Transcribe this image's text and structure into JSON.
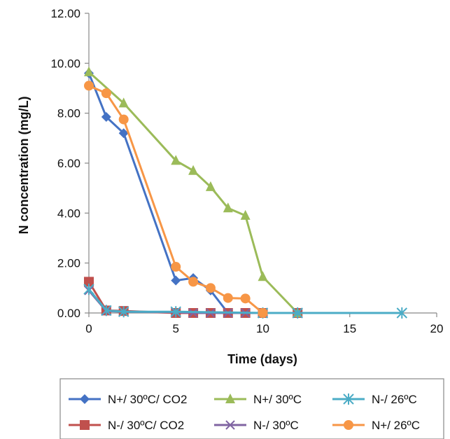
{
  "chart_data": {
    "type": "line",
    "xlabel": "Time (days)",
    "ylabel": "N concentration (mg/L)",
    "xlim": [
      0,
      20
    ],
    "ylim": [
      0,
      12
    ],
    "x_ticks": [
      0,
      5,
      10,
      15,
      20
    ],
    "y_ticks": [
      "0.00",
      "2.00",
      "4.00",
      "6.00",
      "8.00",
      "10.00",
      "12.00"
    ],
    "grid": false,
    "legend_position": "bottom",
    "series": [
      {
        "name": "N+/ 30ºC/ CO2",
        "color": "#4472C4",
        "marker": "diamond",
        "x": [
          0,
          1,
          2,
          5,
          6,
          7,
          8,
          9,
          10,
          12
        ],
        "y": [
          9.6,
          7.85,
          7.2,
          1.3,
          1.4,
          0.9,
          0.0,
          0.0,
          0.0,
          0.0
        ]
      },
      {
        "name": "N-/ 30ºC/ CO2",
        "color": "#C0504D",
        "marker": "square",
        "x": [
          0,
          1,
          2,
          5,
          6,
          7,
          8,
          9,
          10,
          12
        ],
        "y": [
          1.25,
          0.1,
          0.08,
          0.0,
          0.0,
          0.0,
          0.0,
          0.0,
          0.0,
          0.0
        ]
      },
      {
        "name": "N+/ 30ºC",
        "color": "#9BBB59",
        "marker": "triangle",
        "x": [
          0,
          2,
          5,
          6,
          7,
          8,
          9,
          10,
          12
        ],
        "y": [
          9.65,
          8.4,
          6.1,
          5.7,
          5.05,
          4.2,
          3.9,
          1.45,
          0.0
        ]
      },
      {
        "name": "N-/ 30ºC",
        "color": "#8064A2",
        "marker": "x",
        "x": [
          0,
          1,
          2,
          5,
          6,
          7,
          8,
          9,
          10,
          12
        ],
        "y": [
          0.9,
          0.08,
          0.05,
          0.03,
          0.0,
          0.0,
          0.0,
          0.0,
          0.0,
          0.0
        ]
      },
      {
        "name": "N-/ 26ºC",
        "color": "#4BACC6",
        "marker": "star",
        "x": [
          0,
          1,
          2,
          5,
          10,
          12,
          18
        ],
        "y": [
          0.95,
          0.1,
          0.05,
          0.05,
          0.0,
          0.0,
          0.0
        ]
      },
      {
        "name": "N+/ 26ºC",
        "color": "#F79646",
        "marker": "circle",
        "x": [
          0,
          1,
          2,
          5,
          6,
          7,
          8,
          9,
          10
        ],
        "y": [
          9.1,
          8.8,
          7.75,
          1.85,
          1.25,
          1.0,
          0.6,
          0.58,
          0.0
        ]
      }
    ]
  },
  "legend": {
    "row1": [
      "N+/ 30ºC/ CO2",
      "N+/ 30ºC",
      "N-/ 26ºC"
    ],
    "row2": [
      "N-/ 30ºC/ CO2",
      "N-/ 30ºC",
      "N+/ 26ºC"
    ]
  }
}
